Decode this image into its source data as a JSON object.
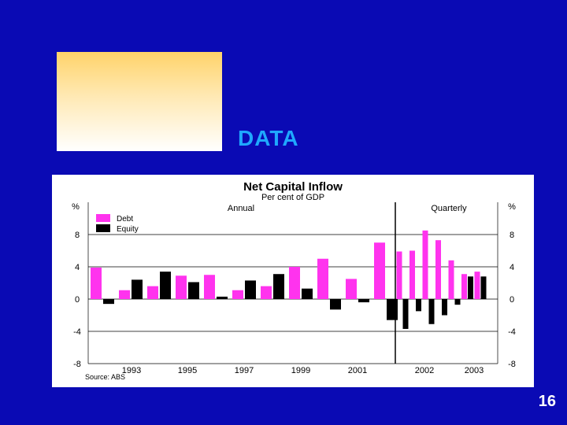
{
  "slide": {
    "title": "DATA",
    "page_number": "16",
    "colors": {
      "background": "#0a0ab4",
      "title": "#1fa8ff"
    }
  },
  "chart_data": {
    "type": "bar",
    "title": "Net Capital Inflow",
    "subtitle": "Per cent of GDP",
    "section_labels": [
      "Annual",
      "Quarterly"
    ],
    "left_unit": "%",
    "right_unit": "%",
    "ylim": [
      -8,
      12
    ],
    "yticks": [
      -8,
      -4,
      0,
      4,
      8
    ],
    "ytick_labels": [
      "-8",
      "-4",
      "0",
      "4",
      "8"
    ],
    "source": "Source: ABS",
    "x_labels": [
      "1993",
      "1995",
      "1997",
      "1999",
      "2001",
      "2002",
      "2003"
    ],
    "series": [
      {
        "name": "Debt",
        "color": "#ff33ee",
        "values": [
          3.9,
          1.1,
          1.6,
          2.9,
          3.0,
          1.1,
          1.6,
          4.0,
          5.0,
          2.5,
          7.0,
          5.9,
          6.0,
          8.5,
          7.3,
          4.8,
          3.1,
          3.4
        ]
      },
      {
        "name": "Equity",
        "color": "#000000",
        "values": [
          -0.6,
          2.4,
          3.4,
          2.1,
          0.3,
          2.3,
          3.1,
          1.3,
          -1.3,
          -0.4,
          -2.6,
          -3.7,
          -1.5,
          -3.1,
          -2.0,
          -0.7,
          2.8,
          2.8
        ]
      }
    ]
  }
}
